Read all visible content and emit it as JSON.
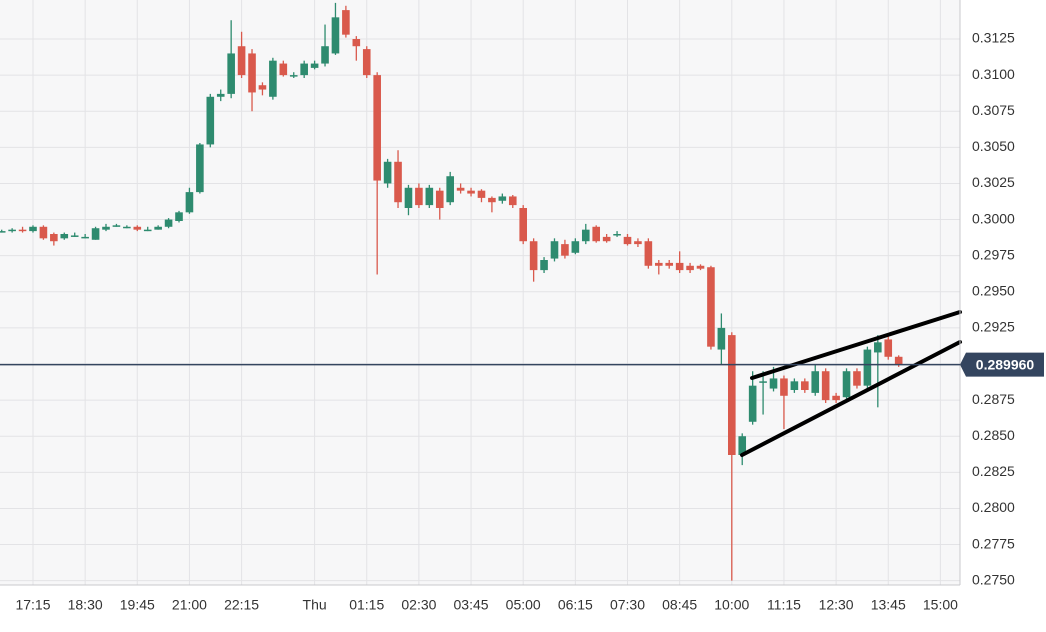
{
  "chart_data": {
    "type": "candlestick",
    "categories": [
      null,
      null,
      null,
      "17:15",
      null,
      null,
      null,
      null,
      "18:30",
      null,
      null,
      null,
      null,
      "19:45",
      null,
      null,
      null,
      null,
      "21:00",
      null,
      null,
      null,
      null,
      "22:15",
      null,
      null,
      null,
      null,
      null,
      null,
      "Thu",
      null,
      null,
      null,
      null,
      "01:15",
      null,
      null,
      null,
      null,
      "02:30",
      null,
      null,
      null,
      null,
      "03:45",
      null,
      null,
      null,
      null,
      "05:00",
      null,
      null,
      null,
      null,
      "06:15",
      null,
      null,
      null,
      null,
      "07:30",
      null,
      null,
      null,
      null,
      "08:45",
      null,
      null,
      null,
      null,
      "10:00",
      null,
      null,
      null,
      null,
      "11:15",
      null,
      null,
      null,
      null,
      "12:30",
      null,
      null,
      null,
      null,
      "13:45",
      null,
      null,
      null,
      null,
      "15:00"
    ],
    "open": [
      0.2992,
      0.2992,
      0.2993,
      0.2992,
      0.2995,
      0.299,
      0.2987,
      0.2989,
      0.2988,
      0.2986,
      0.2993,
      0.2996,
      0.2995,
      0.2995,
      0.2993,
      0.2993,
      0.2995,
      0.2999,
      0.3005,
      0.3019,
      0.3052,
      0.3085,
      0.3087,
      0.312,
      0.3115,
      0.3093,
      0.3085,
      0.3108,
      0.31,
      0.31,
      0.3105,
      0.3108,
      0.3115,
      0.3145,
      0.3125,
      0.3118,
      0.31,
      0.3025,
      0.304,
      0.3008,
      0.3022,
      0.301,
      0.302,
      0.3012,
      0.3022,
      0.302,
      0.302,
      0.3015,
      0.3013,
      0.3016,
      0.3008,
      0.2985,
      0.2965,
      0.2973,
      0.2983,
      0.2977,
      0.2985,
      0.2995,
      0.2988,
      0.299,
      0.2988,
      0.2985,
      0.2985,
      0.297,
      0.297,
      0.297,
      0.2968,
      0.2968,
      0.2967,
      0.291,
      0.292,
      0.2837,
      0.286,
      0.2887,
      0.2883,
      0.289,
      0.2882,
      0.2888,
      0.288,
      0.2895,
      0.2878,
      0.2877,
      0.2895,
      0.2885,
      0.2908,
      0.2917,
      0.2905,
      null,
      null,
      null,
      null
    ],
    "high": [
      0.2993,
      0.2994,
      0.2995,
      0.2996,
      0.2996,
      0.2991,
      0.2991,
      0.2991,
      0.299,
      0.2995,
      0.2997,
      0.2997,
      0.2996,
      0.2996,
      0.2995,
      0.2996,
      0.3001,
      0.3006,
      0.3022,
      0.3053,
      0.3087,
      0.309,
      0.3138,
      0.313,
      0.3118,
      0.3095,
      0.3112,
      0.311,
      0.3102,
      0.311,
      0.311,
      0.3135,
      0.315,
      0.3148,
      0.3127,
      0.312,
      0.3102,
      0.3042,
      0.3048,
      0.3024,
      0.3025,
      0.3024,
      0.3022,
      0.3033,
      0.3025,
      0.3022,
      0.3021,
      0.3016,
      0.3018,
      0.3017,
      0.301,
      0.2987,
      0.2974,
      0.2987,
      0.2986,
      0.2987,
      0.2997,
      0.2996,
      0.299,
      0.2992,
      0.299,
      0.2987,
      0.2987,
      0.2972,
      0.2972,
      0.2978,
      0.297,
      0.2969,
      0.2968,
      0.2935,
      0.2922,
      0.2852,
      0.2895,
      0.2895,
      0.2898,
      0.2892,
      0.289,
      0.289,
      0.29,
      0.2897,
      0.288,
      0.2897,
      0.2897,
      0.2912,
      0.292,
      0.2919,
      0.2906,
      null,
      null,
      null,
      null
    ],
    "low": [
      0.2991,
      0.2991,
      0.2991,
      0.2991,
      0.2986,
      0.2982,
      0.2986,
      0.2988,
      0.2987,
      0.2986,
      0.2992,
      0.2995,
      0.2994,
      0.2992,
      0.2992,
      0.2993,
      0.2994,
      0.2998,
      0.3004,
      0.3018,
      0.305,
      0.3082,
      0.3084,
      0.3098,
      0.3075,
      0.3086,
      0.3083,
      0.3099,
      0.3098,
      0.3098,
      0.3104,
      0.3106,
      0.3114,
      0.3126,
      0.311,
      0.3098,
      0.2962,
      0.3022,
      0.3008,
      0.3003,
      0.3008,
      0.3008,
      0.3,
      0.301,
      0.3018,
      0.3016,
      0.3012,
      0.3005,
      0.3011,
      0.3008,
      0.2983,
      0.2957,
      0.2963,
      0.2971,
      0.2973,
      0.2976,
      0.2983,
      0.2984,
      0.2984,
      0.2988,
      0.2982,
      0.2981,
      0.2966,
      0.2962,
      0.2966,
      0.2963,
      0.2963,
      0.2965,
      0.291,
      0.29,
      0.275,
      0.283,
      0.2858,
      0.2865,
      0.2881,
      0.2855,
      0.288,
      0.288,
      0.2878,
      0.2873,
      0.2873,
      0.2875,
      0.2883,
      0.2883,
      0.287,
      0.2903,
      0.2898,
      null,
      null,
      null,
      null
    ],
    "close": [
      0.2992,
      0.2993,
      0.2992,
      0.2995,
      0.2987,
      0.2985,
      0.299,
      0.2989,
      0.2988,
      0.2994,
      0.2995,
      0.2996,
      0.2995,
      0.2993,
      0.2993,
      0.2995,
      0.3,
      0.3005,
      0.3019,
      0.3052,
      0.3085,
      0.3087,
      0.3115,
      0.31,
      0.3088,
      0.309,
      0.311,
      0.31,
      0.31,
      0.3108,
      0.3108,
      0.312,
      0.314,
      0.3128,
      0.312,
      0.31,
      0.3027,
      0.304,
      0.3012,
      0.3022,
      0.301,
      0.3022,
      0.3008,
      0.303,
      0.302,
      0.3018,
      0.3015,
      0.3012,
      0.3016,
      0.301,
      0.2985,
      0.2965,
      0.2972,
      0.2985,
      0.2975,
      0.2985,
      0.2993,
      0.2985,
      0.2985,
      0.299,
      0.2983,
      0.2983,
      0.2968,
      0.2968,
      0.2968,
      0.2965,
      0.2965,
      0.2966,
      0.2912,
      0.2925,
      0.2837,
      0.285,
      0.2885,
      0.2888,
      0.289,
      0.2878,
      0.2888,
      0.2882,
      0.2895,
      0.2875,
      0.2875,
      0.2895,
      0.2885,
      0.291,
      0.2915,
      0.2905,
      0.29,
      null,
      null,
      null,
      null
    ],
    "up_color": "#2e8b6f",
    "down_color": "#d9594c",
    "ylim": [
      0.2747,
      0.3152
    ],
    "yticks": [
      {
        "value": 0.275,
        "label": "0.2750"
      },
      0.2775,
      {
        "value": 0.28,
        "label": "0.2800"
      },
      0.2825,
      {
        "value": 0.285,
        "label": "0.2850"
      },
      0.2875,
      {
        "value": 0.29,
        "label": "0.2900"
      },
      0.2925,
      {
        "value": 0.295,
        "label": "0.2950"
      },
      0.2975,
      {
        "value": 0.3,
        "label": "0.3000"
      },
      0.3025,
      {
        "value": 0.305,
        "label": "0.3050"
      },
      0.3075,
      {
        "value": 0.31,
        "label": "0.3100"
      },
      0.3125
    ],
    "grid": true,
    "current_price": {
      "value": 0.28996,
      "label": "0.289960",
      "color": "#34455f"
    }
  }
}
